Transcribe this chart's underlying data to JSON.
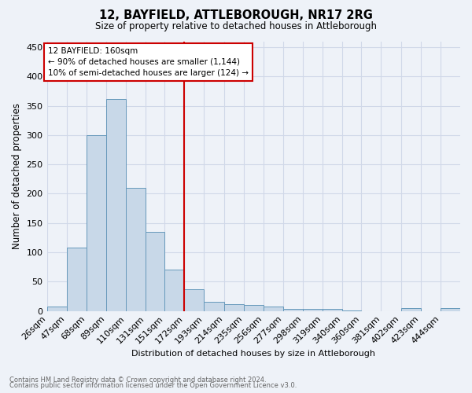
{
  "title": "12, BAYFIELD, ATTLEBOROUGH, NR17 2RG",
  "subtitle": "Size of property relative to detached houses in Attleborough",
  "xlabel": "Distribution of detached houses by size in Attleborough",
  "ylabel": "Number of detached properties",
  "footnote1": "Contains HM Land Registry data © Crown copyright and database right 2024.",
  "footnote2": "Contains public sector information licensed under the Open Government Licence v3.0.",
  "bin_labels": [
    "26sqm",
    "47sqm",
    "68sqm",
    "89sqm",
    "110sqm",
    "131sqm",
    "151sqm",
    "172sqm",
    "193sqm",
    "214sqm",
    "235sqm",
    "256sqm",
    "277sqm",
    "298sqm",
    "319sqm",
    "340sqm",
    "360sqm",
    "381sqm",
    "402sqm",
    "423sqm",
    "444sqm"
  ],
  "bar_values": [
    8,
    108,
    300,
    362,
    210,
    135,
    70,
    37,
    15,
    12,
    10,
    7,
    4,
    4,
    3,
    1,
    0,
    0,
    5,
    0,
    5
  ],
  "bar_color": "#c8d8e8",
  "bar_edge_color": "#6699bb",
  "grid_color": "#d0d8e8",
  "background_color": "#eef2f8",
  "vline_color": "#cc0000",
  "annotation_line1": "12 BAYFIELD: 160sqm",
  "annotation_line2": "← 90% of detached houses are smaller (1,144)",
  "annotation_line3": "10% of semi-detached houses are larger (124) →",
  "annotation_box_color": "#ffffff",
  "annotation_box_edge": "#cc0000",
  "ylim": [
    0,
    460
  ],
  "bin_edges": [
    26,
    47,
    68,
    89,
    110,
    131,
    151,
    172,
    193,
    214,
    235,
    256,
    277,
    298,
    319,
    340,
    360,
    381,
    402,
    423,
    444,
    465
  ]
}
